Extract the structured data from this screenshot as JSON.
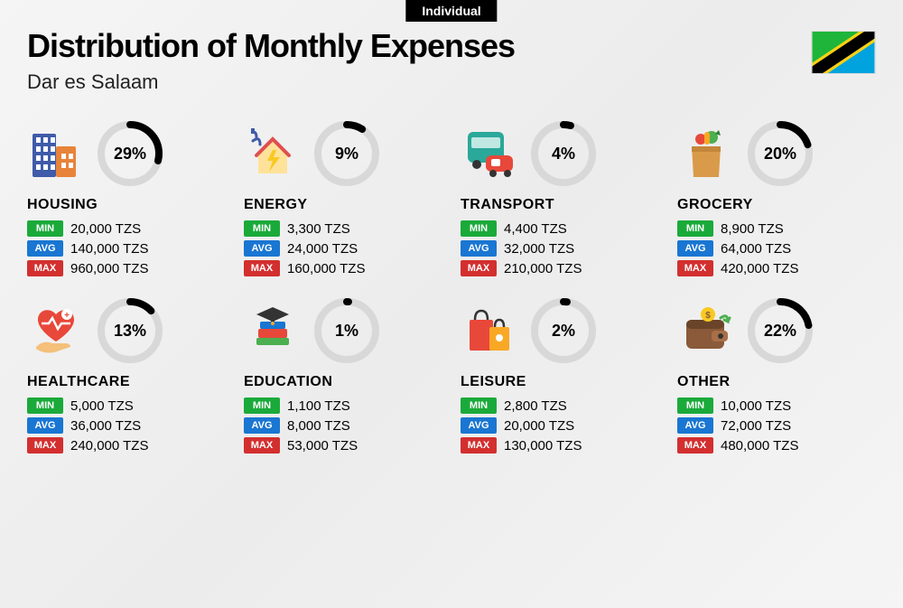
{
  "badge": "Individual",
  "title": "Distribution of Monthly Expenses",
  "subtitle": "Dar es Salaam",
  "currency": "TZS",
  "labels": {
    "min": "MIN",
    "avg": "AVG",
    "max": "MAX"
  },
  "colors": {
    "min": "#1aaa3a",
    "avg": "#1976d2",
    "max": "#d32f2f",
    "donut_track": "#d8d8d8",
    "donut_progress": "#000000",
    "background": "#f5f5f5"
  },
  "donut": {
    "size": 72,
    "stroke_width": 8
  },
  "flag": {
    "top": "#1eb53a",
    "bottom": "#00a3dd",
    "black": "#000000",
    "yellow": "#fcd116"
  },
  "categories": [
    {
      "key": "housing",
      "name": "HOUSING",
      "pct": 29,
      "min": "20,000",
      "avg": "140,000",
      "max": "960,000",
      "icon": "buildings"
    },
    {
      "key": "energy",
      "name": "ENERGY",
      "pct": 9,
      "min": "3,300",
      "avg": "24,000",
      "max": "160,000",
      "icon": "energy-house"
    },
    {
      "key": "transport",
      "name": "TRANSPORT",
      "pct": 4,
      "min": "4,400",
      "avg": "32,000",
      "max": "210,000",
      "icon": "bus-car"
    },
    {
      "key": "grocery",
      "name": "GROCERY",
      "pct": 20,
      "min": "8,900",
      "avg": "64,000",
      "max": "420,000",
      "icon": "grocery-bag"
    },
    {
      "key": "healthcare",
      "name": "HEALTHCARE",
      "pct": 13,
      "min": "5,000",
      "avg": "36,000",
      "max": "240,000",
      "icon": "heart-hand"
    },
    {
      "key": "education",
      "name": "EDUCATION",
      "pct": 1,
      "min": "1,100",
      "avg": "8,000",
      "max": "53,000",
      "icon": "books-cap"
    },
    {
      "key": "leisure",
      "name": "LEISURE",
      "pct": 2,
      "min": "2,800",
      "avg": "20,000",
      "max": "130,000",
      "icon": "shopping-bags"
    },
    {
      "key": "other",
      "name": "OTHER",
      "pct": 22,
      "min": "10,000",
      "avg": "72,000",
      "max": "480,000",
      "icon": "wallet"
    }
  ]
}
